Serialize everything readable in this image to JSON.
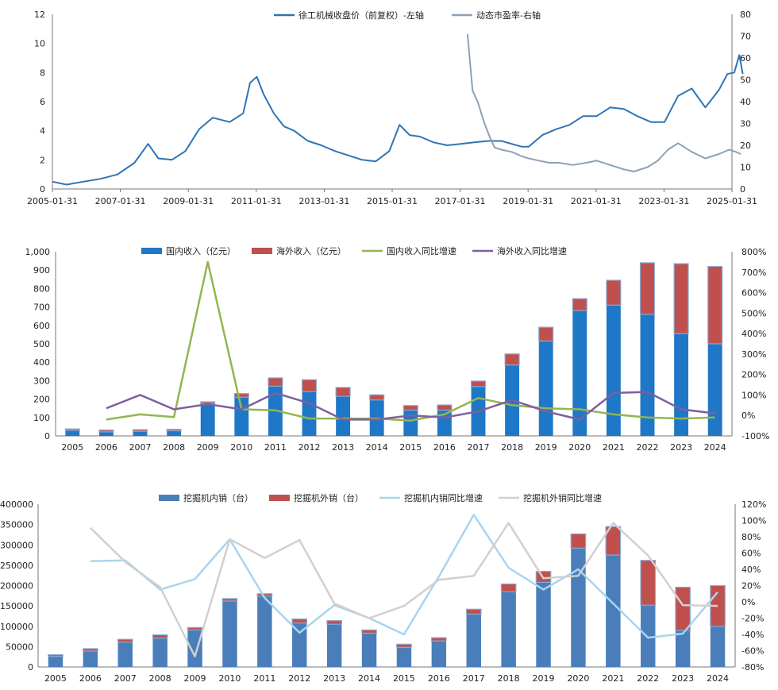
{
  "chart_data": [
    {
      "type": "line",
      "legend": [
        {
          "label": "徐工机械收盘价（前复权）-左轴",
          "color": "#2E75B6"
        },
        {
          "label": "动态市盈率-右轴",
          "color": "#8EA0B8"
        }
      ],
      "x_tick_labels": [
        "2005-01-31",
        "2007-01-31",
        "2009-01-31",
        "2011-01-31",
        "2013-01-31",
        "2015-01-31",
        "2017-01-31",
        "2019-01-31",
        "2021-01-31",
        "2023-01-31",
        "2025-01-31"
      ],
      "y_left_ticks": [
        "0",
        "2",
        "4",
        "6",
        "8",
        "10",
        "12"
      ],
      "y_right_ticks": [
        "0",
        "10",
        "20",
        "30",
        "40",
        "50",
        "60",
        "70",
        "80"
      ],
      "ylim_left": [
        0,
        12
      ],
      "ylim_right": [
        0,
        80
      ],
      "grid": false,
      "series": [
        {
          "name": "徐工机械收盘价（前复权）-左轴",
          "axis": "left",
          "x": [
            2005.08,
            2005.5,
            2006.0,
            2006.5,
            2007.0,
            2007.5,
            2007.9,
            2008.2,
            2008.6,
            2009.0,
            2009.4,
            2009.8,
            2010.3,
            2010.7,
            2010.9,
            2011.1,
            2011.3,
            2011.6,
            2011.9,
            2012.2,
            2012.6,
            2013.0,
            2013.4,
            2013.8,
            2014.2,
            2014.6,
            2015.0,
            2015.3,
            2015.6,
            2015.9,
            2016.3,
            2016.7,
            2017.1,
            2017.5,
            2017.9,
            2018.3,
            2018.6,
            2018.9,
            2019.1,
            2019.5,
            2019.9,
            2020.3,
            2020.7,
            2021.1,
            2021.5,
            2021.9,
            2022.3,
            2022.7,
            2023.1,
            2023.5,
            2023.9,
            2024.3,
            2024.7,
            2024.95,
            2025.15,
            2025.3,
            2025.4
          ],
          "y": [
            0.5,
            0.3,
            0.5,
            0.7,
            1.0,
            1.8,
            3.1,
            2.1,
            2.0,
            2.6,
            4.1,
            4.9,
            4.6,
            5.2,
            7.3,
            7.7,
            6.5,
            5.2,
            4.3,
            4.0,
            3.3,
            3.0,
            2.6,
            2.3,
            2.0,
            1.9,
            2.6,
            4.4,
            3.7,
            3.6,
            3.2,
            3.0,
            3.1,
            3.2,
            3.3,
            3.3,
            3.1,
            2.9,
            2.9,
            3.7,
            4.1,
            4.4,
            5.0,
            5.0,
            5.6,
            5.5,
            5.0,
            4.6,
            4.6,
            6.4,
            6.9,
            5.6,
            6.8,
            7.9,
            8.0,
            9.2,
            7.9
          ]
        },
        {
          "name": "动态市盈率-右轴",
          "axis": "right",
          "x": [
            2017.3,
            2017.45,
            2017.6,
            2017.8,
            2017.95,
            2018.1,
            2018.3,
            2018.6,
            2018.9,
            2019.1,
            2019.4,
            2019.7,
            2020.0,
            2020.4,
            2020.8,
            2021.1,
            2021.5,
            2021.9,
            2022.2,
            2022.6,
            2022.9,
            2023.2,
            2023.5,
            2023.9,
            2024.3,
            2024.7,
            2025.0,
            2025.2,
            2025.35
          ],
          "y": [
            71,
            45,
            40,
            30,
            24,
            19,
            18,
            17,
            15,
            14,
            13,
            12,
            12,
            11,
            12,
            13,
            11,
            9,
            8,
            10,
            13,
            18,
            21,
            17,
            14,
            16,
            18,
            17,
            16
          ]
        }
      ]
    },
    {
      "type": "bar",
      "legend": [
        {
          "label": "国内收入（亿元）",
          "color": "#1F77C8"
        },
        {
          "label": "海外收入（亿元）",
          "color": "#C0504D"
        },
        {
          "label": "国内收入同比增速",
          "color": "#92B650"
        },
        {
          "label": "海外收入同比增速",
          "color": "#7F5F9E"
        }
      ],
      "categories": [
        "2005",
        "2006",
        "2007",
        "2008",
        "2009",
        "2010",
        "2011",
        "2012",
        "2013",
        "2014",
        "2015",
        "2016",
        "2017",
        "2018",
        "2019",
        "2020",
        "2021",
        "2022",
        "2023",
        "2024"
      ],
      "y_left_ticks": [
        "0",
        "100",
        "200",
        "300",
        "400",
        "500",
        "600",
        "700",
        "800",
        "900",
        "1,000"
      ],
      "y_right_ticks": [
        "-100%",
        "0%",
        "100%",
        "200%",
        "300%",
        "400%",
        "500%",
        "600%",
        "700%",
        "800%"
      ],
      "ylim_left": [
        0,
        1000
      ],
      "ylim_right": [
        -100,
        800
      ],
      "series": [
        {
          "name": "国内收入（亿元）",
          "kind": "bar",
          "axis": "left",
          "values": [
            30,
            22,
            25,
            28,
            175,
            210,
            270,
            240,
            215,
            195,
            140,
            140,
            268,
            385,
            515,
            680,
            710,
            660,
            555,
            500
          ]
        },
        {
          "name": "海外收入（亿元）",
          "kind": "bar-stack",
          "axis": "left",
          "values": [
            8,
            10,
            9,
            8,
            10,
            20,
            45,
            65,
            48,
            28,
            25,
            28,
            30,
            60,
            75,
            65,
            135,
            280,
            380,
            420
          ]
        },
        {
          "name": "国内收入同比增速",
          "kind": "line",
          "axis": "right",
          "values": [
            null,
            -20,
            5,
            -8,
            750,
            30,
            25,
            -15,
            -15,
            -15,
            -25,
            5,
            85,
            50,
            35,
            30,
            5,
            -10,
            -15,
            -10
          ]
        },
        {
          "name": "海外收入同比增速",
          "kind": "line",
          "axis": "right",
          "values": [
            null,
            35,
            100,
            30,
            55,
            30,
            110,
            60,
            -20,
            -20,
            0,
            -10,
            20,
            75,
            20,
            -20,
            110,
            115,
            30,
            10
          ]
        }
      ]
    },
    {
      "type": "bar",
      "legend": [
        {
          "label": "挖掘机内销（台）",
          "color": "#4A7EBB"
        },
        {
          "label": "挖掘机外销（台）",
          "color": "#C0504D"
        },
        {
          "label": "挖掘机内销同比增速",
          "color": "#A9D4EE"
        },
        {
          "label": "挖掘机外销同比增速",
          "color": "#D0D0D0"
        }
      ],
      "categories": [
        "2005",
        "2006",
        "2007",
        "2008",
        "2009",
        "2010",
        "2011",
        "2012",
        "2013",
        "2014",
        "2015",
        "2016",
        "2017",
        "2018",
        "2019",
        "2020",
        "2021",
        "2022",
        "2023",
        "2024"
      ],
      "y_left_ticks": [
        "0",
        "50000",
        "100000",
        "150000",
        "200000",
        "250000",
        "300000",
        "350000",
        "400000"
      ],
      "y_right_ticks": [
        "-80%",
        "-60%",
        "-40%",
        "-20%",
        "0%",
        "20%",
        "40%",
        "60%",
        "80%",
        "100%",
        "120%"
      ],
      "ylim_left": [
        0,
        400000
      ],
      "ylim_right": [
        -80,
        120
      ],
      "series": [
        {
          "name": "挖掘机内销（台）",
          "kind": "bar",
          "axis": "left",
          "values": [
            26000,
            39000,
            61000,
            71000,
            91000,
            162000,
            174000,
            108000,
            105000,
            83000,
            48000,
            64000,
            130000,
            185000,
            208000,
            292000,
            275000,
            152000,
            90000,
            100000
          ]
        },
        {
          "name": "挖掘机外销（台）",
          "kind": "bar-stack",
          "axis": "left",
          "values": [
            4000,
            6000,
            7000,
            8000,
            6000,
            6000,
            6000,
            10000,
            9000,
            8000,
            8000,
            8000,
            12000,
            19000,
            27000,
            35000,
            70000,
            110000,
            106000,
            100000
          ]
        },
        {
          "name": "挖掘机内销同比增速",
          "kind": "line",
          "axis": "right",
          "values": [
            null,
            50,
            51,
            15,
            28,
            77,
            5,
            -38,
            -4,
            -20,
            -40,
            31,
            107,
            42,
            15,
            40,
            -2,
            -44,
            -39,
            12
          ]
        },
        {
          "name": "挖掘机外销同比增速",
          "kind": "line",
          "axis": "right",
          "values": [
            null,
            91,
            49,
            18,
            -67,
            77,
            54,
            76,
            -2,
            -20,
            -5,
            27,
            32,
            97,
            29,
            32,
            97,
            57,
            -4,
            -5
          ]
        }
      ]
    }
  ]
}
